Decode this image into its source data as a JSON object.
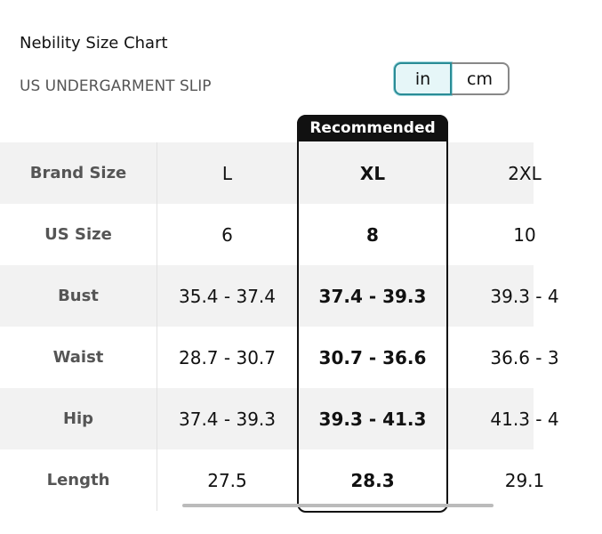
{
  "header": {
    "title": "Nebility Size Chart",
    "subtitle": "US UNDERGARMENT SLIP"
  },
  "unit_toggle": [
    "in",
    "cm"
  ],
  "badge": "Recommended",
  "table": {
    "rows": [
      [
        "Brand Size",
        "L",
        "XL",
        "2XL"
      ],
      [
        "US Size",
        "6",
        "8",
        "10"
      ],
      [
        "Bust",
        "35.4 - 37.4",
        "37.4 - 39.3",
        "39.3 - 4"
      ],
      [
        "Waist",
        "28.7 - 30.7",
        "30.7 - 36.6",
        "36.6 - 3"
      ],
      [
        "Hip",
        "37.4 - 39.3",
        "39.3 - 41.3",
        "41.3 - 4"
      ],
      [
        "Length",
        "27.5",
        "28.3",
        "29.1"
      ]
    ]
  }
}
